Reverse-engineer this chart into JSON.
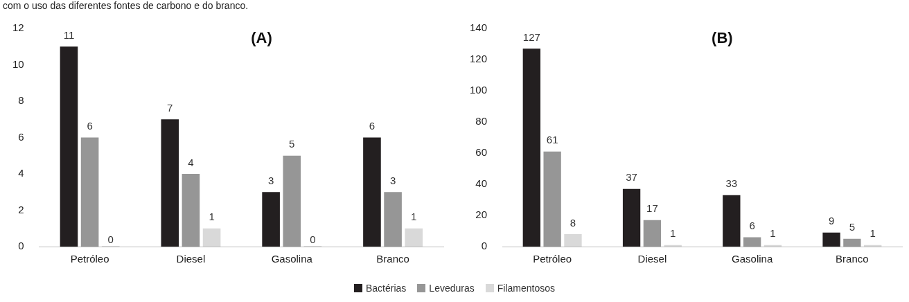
{
  "chart_data": [
    {
      "type": "bar",
      "title": "(A)",
      "annotations": [
        "com o uso das diferentes fontes de carbono e do branco."
      ],
      "categories": [
        "Petróleo",
        "Diesel",
        "Gasolina",
        "Branco"
      ],
      "series": [
        {
          "name": "Bactérias",
          "color": "#231f20",
          "values": [
            11,
            7,
            3,
            6
          ]
        },
        {
          "name": "Leveduras",
          "color": "#969696",
          "values": [
            6,
            4,
            5,
            3
          ]
        },
        {
          "name": "Filamentosos",
          "color": "#d9d9d9",
          "values": [
            0,
            1,
            0,
            1
          ]
        }
      ],
      "ylim": [
        0,
        12
      ],
      "yticks": [
        0,
        2,
        4,
        6,
        8,
        10,
        12
      ],
      "data_labels": true,
      "legend": "bottom"
    },
    {
      "type": "bar",
      "title": "(B)",
      "categories": [
        "Petróleo",
        "Diesel",
        "Gasolina",
        "Branco"
      ],
      "series": [
        {
          "color": "#231f20",
          "values": [
            127,
            37,
            33,
            9
          ]
        },
        {
          "color": "#969696",
          "values": [
            61,
            17,
            6,
            5
          ]
        },
        {
          "color": "#d9d9d9",
          "values": [
            8,
            1,
            1,
            1
          ]
        }
      ],
      "ylim": [
        0,
        140
      ],
      "yticks": [
        0,
        20,
        40,
        60,
        80,
        100,
        120,
        140
      ],
      "data_labels": true
    }
  ]
}
